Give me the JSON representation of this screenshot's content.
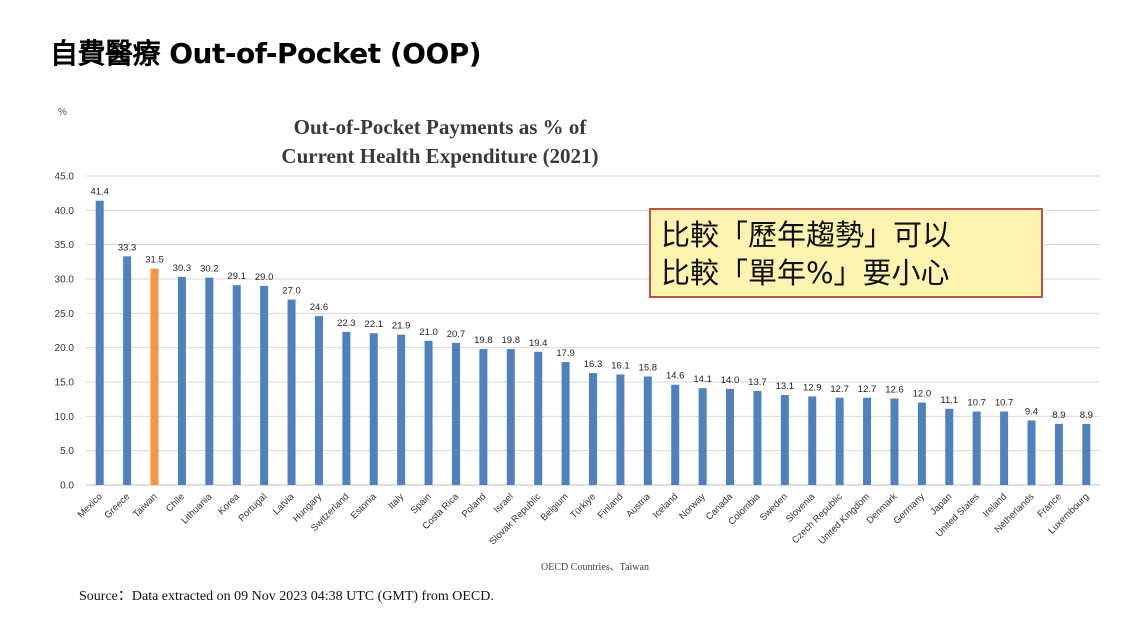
{
  "page": {
    "heading": "自費醫療 Out-of-Pocket (OOP)",
    "source": "Source：Data extracted on 09 Nov 2023 04:38 UTC (GMT) from OECD."
  },
  "callout": {
    "line1": "比較「歷年趨勢」可以",
    "line2": "比較「單年%」要小心"
  },
  "colors": {
    "bar": "#4f81bd",
    "highlight": "#f79646",
    "grid": "#d9d9d9",
    "callout_border": "#c0504d",
    "callout_fill": "#fcf3b0"
  },
  "chart_data": {
    "type": "bar",
    "title": "Out-of-Pocket Payments as % of",
    "subtitle": "Current Health Expenditure (2021)",
    "ylabel": "%",
    "xlabel": "OECD Countries、Taiwan",
    "ylim": [
      0,
      45
    ],
    "yticks": [
      "0.0",
      "5.0",
      "10.0",
      "15.0",
      "20.0",
      "25.0",
      "30.0",
      "35.0",
      "40.0",
      "45.0"
    ],
    "grid": true,
    "highlight_category": "Taiwan",
    "categories": [
      "Mexico",
      "Greece",
      "Taiwan",
      "Chile",
      "Lithuania",
      "Korea",
      "Portugal",
      "Latvia",
      "Hungary",
      "Switzerland",
      "Estonia",
      "Italy",
      "Spain",
      "Costa Rica",
      "Poland",
      "Israel",
      "Slovak Republic",
      "Belgium",
      "Türkiye",
      "Finland",
      "Austria",
      "Iceland",
      "Norway",
      "Canada",
      "Colombia",
      "Sweden",
      "Slovenia",
      "Czech Republic",
      "United Kingdom",
      "Denmark",
      "Germany",
      "Japan",
      "United States",
      "Ireland",
      "Netherlands",
      "France",
      "Luxembourg"
    ],
    "values": [
      41.4,
      33.3,
      31.5,
      30.3,
      30.2,
      29.1,
      29.0,
      27.0,
      24.6,
      22.3,
      22.1,
      21.9,
      21.0,
      20.7,
      19.8,
      19.8,
      19.4,
      17.9,
      16.3,
      16.1,
      15.8,
      14.6,
      14.1,
      14.0,
      13.7,
      13.1,
      12.9,
      12.7,
      12.7,
      12.6,
      12.0,
      11.1,
      10.7,
      10.7,
      9.4,
      8.9,
      8.9
    ],
    "value_labels": [
      "41.4",
      "33.3",
      "31.5",
      "30.3",
      "30.2",
      "29.1",
      "29.0",
      "27.0",
      "24.6",
      "22.3",
      "22.1",
      "21.9",
      "21.0",
      "20.7",
      "19.8",
      "19.8",
      "19.4",
      "17.9",
      "16.3",
      "16.1",
      "15.8",
      "14.6",
      "14.1",
      "14.0",
      "13.7",
      "13.1",
      "12.9",
      "12.7",
      "12.7",
      "12.6",
      "12.0",
      "11.1",
      "10.7",
      "10.7",
      "9.4",
      "8.9",
      "8.9"
    ]
  }
}
